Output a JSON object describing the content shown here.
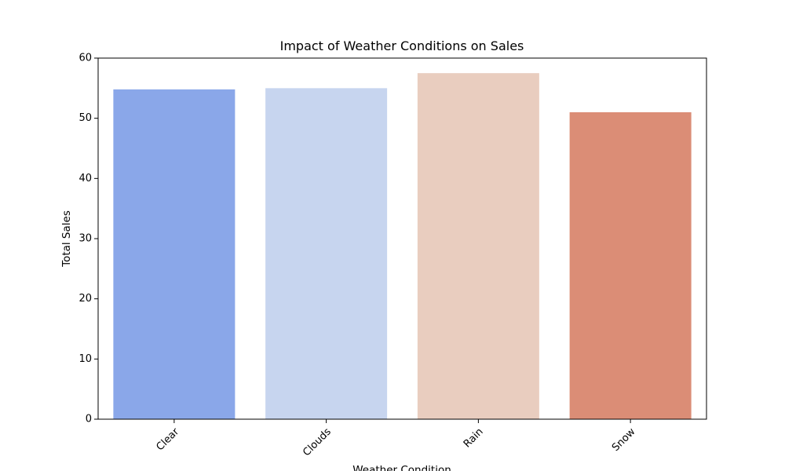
{
  "chart_data": {
    "type": "bar",
    "title": "Impact of Weather Conditions on Sales",
    "xlabel": "Weather Condition",
    "ylabel": "Total Sales",
    "categories": [
      "Clear",
      "Clouds",
      "Rain",
      "Snow"
    ],
    "values": [
      54.8,
      55.0,
      57.5,
      51.0
    ],
    "colors": [
      "#8aa7e9",
      "#c7d5ef",
      "#e9cdbf",
      "#db8d76"
    ],
    "ylim": [
      0,
      60
    ],
    "yticks": [
      0,
      10,
      20,
      30,
      40,
      50,
      60
    ],
    "grid": false,
    "legend": "none"
  }
}
